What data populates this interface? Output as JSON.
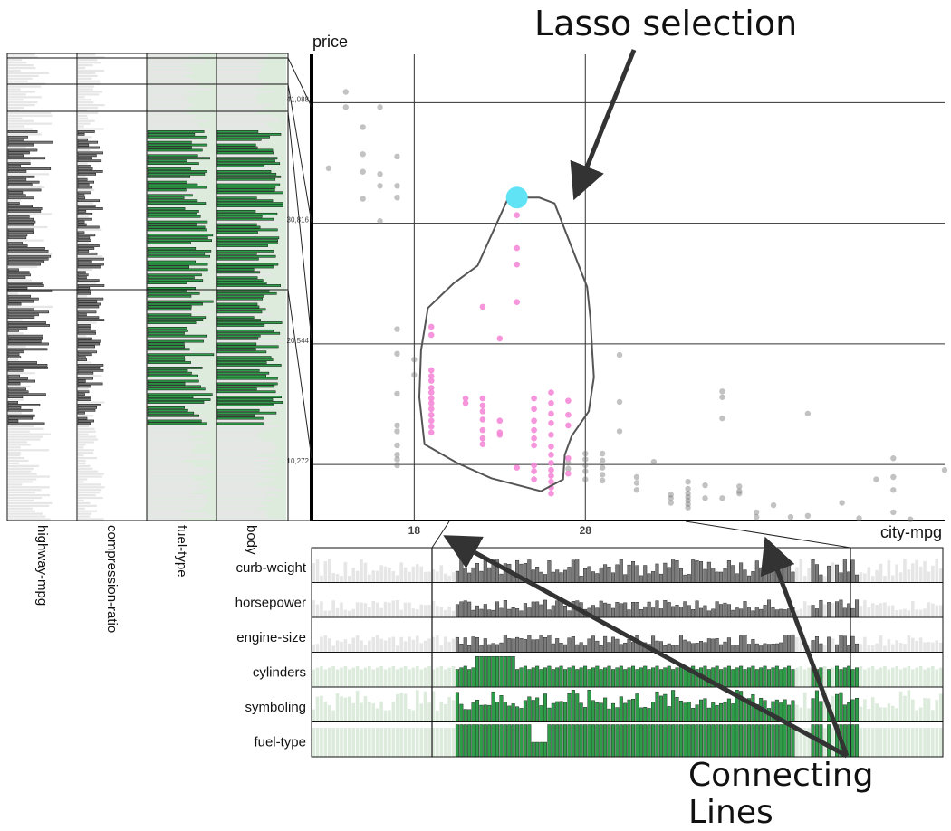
{
  "annotations": {
    "lasso_label": "Lasso selection",
    "connecting_label": "Connecting Lines"
  },
  "colors": {
    "selected_point": "#f58ad8",
    "unselected_point": "#777777",
    "lasso_anchor": "#5fe3f5",
    "categorical_bar": "#2e9c48",
    "numeric_bar": "#7a7a7a",
    "faded_bar": "#e6e6e6",
    "faded_green": "#dcebdc"
  },
  "chart_data": [
    {
      "type": "scatter",
      "x_label": "city-mpg",
      "y_label": "price",
      "x_ticks": [
        "18",
        "28"
      ],
      "y_ticks": [
        "10,272",
        "20,544",
        "30,816",
        "41,088"
      ],
      "x_range": [
        12,
        49
      ],
      "y_range": [
        5500,
        45200
      ],
      "lasso": [
        [
          24,
          33000
        ],
        [
          25.3,
          33000
        ],
        [
          26.2,
          32500
        ],
        [
          28.1,
          25400
        ],
        [
          28.3,
          22700
        ],
        [
          28.4,
          20000
        ],
        [
          28.5,
          17700
        ],
        [
          28.2,
          14800
        ],
        [
          27.2,
          12700
        ],
        [
          26.8,
          11100
        ],
        [
          26.7,
          9000
        ],
        [
          25.4,
          8000
        ],
        [
          22.5,
          9100
        ],
        [
          20.5,
          10400
        ],
        [
          18.6,
          12000
        ],
        [
          18.3,
          16000
        ],
        [
          18.4,
          20000
        ],
        [
          18.8,
          23600
        ],
        [
          20.3,
          25700
        ],
        [
          21.7,
          27200
        ],
        [
          23.5,
          33000
        ]
      ],
      "lasso_anchor": [
        24,
        33000
      ],
      "selected_points": [
        [
          24,
          31500
        ],
        [
          24,
          28700
        ],
        [
          24,
          27300
        ],
        [
          24,
          24100
        ],
        [
          22,
          23700
        ],
        [
          19,
          22000
        ],
        [
          19,
          21300
        ],
        [
          23,
          21000
        ],
        [
          19,
          18300
        ],
        [
          19,
          17800
        ],
        [
          19,
          17400
        ],
        [
          19,
          16800
        ],
        [
          19,
          16400
        ],
        [
          19,
          15900
        ],
        [
          19,
          15500
        ],
        [
          19,
          15000
        ],
        [
          19,
          14500
        ],
        [
          19,
          14000
        ],
        [
          19,
          13500
        ],
        [
          19,
          13000
        ],
        [
          21,
          15900
        ],
        [
          21,
          15500
        ],
        [
          22,
          15900
        ],
        [
          22,
          15300
        ],
        [
          22,
          14800
        ],
        [
          22,
          14100
        ],
        [
          22,
          13200
        ],
        [
          22,
          12500
        ],
        [
          22,
          12000
        ],
        [
          23,
          14000
        ],
        [
          23,
          13000
        ],
        [
          25,
          15900
        ],
        [
          25,
          15000
        ],
        [
          25,
          14000
        ],
        [
          25,
          13200
        ],
        [
          25,
          12500
        ],
        [
          25,
          11900
        ],
        [
          25,
          10200
        ],
        [
          25,
          9700
        ],
        [
          25,
          9000
        ],
        [
          26,
          16400
        ],
        [
          26,
          15500
        ],
        [
          26,
          14600
        ],
        [
          26,
          13800
        ],
        [
          26,
          12800
        ],
        [
          26,
          11800
        ],
        [
          26,
          11100
        ],
        [
          26,
          10400
        ],
        [
          26,
          9800
        ],
        [
          26,
          9300
        ],
        [
          26,
          8800
        ],
        [
          26,
          8300
        ],
        [
          26,
          7800
        ],
        [
          27,
          15700
        ],
        [
          27,
          14500
        ],
        [
          27,
          13600
        ],
        [
          27,
          10800
        ],
        [
          27,
          9500
        ],
        [
          24,
          10000
        ],
        [
          23,
          12800
        ]
      ],
      "unselected_points": [
        [
          13,
          35500
        ],
        [
          14,
          42000
        ],
        [
          14,
          40700
        ],
        [
          15,
          39000
        ],
        [
          15,
          36700
        ],
        [
          15,
          35200
        ],
        [
          15,
          32900
        ],
        [
          16,
          40700
        ],
        [
          16,
          35000
        ],
        [
          16,
          34000
        ],
        [
          16,
          31000
        ],
        [
          17,
          36500
        ],
        [
          17,
          34000
        ],
        [
          17,
          33000
        ],
        [
          17,
          21800
        ],
        [
          17,
          19700
        ],
        [
          17,
          16300
        ],
        [
          17,
          13600
        ],
        [
          17,
          13100
        ],
        [
          17,
          11900
        ],
        [
          17,
          11100
        ],
        [
          17,
          10700
        ],
        [
          17,
          10200
        ],
        [
          18,
          19200
        ],
        [
          18,
          17900
        ],
        [
          27,
          10400
        ],
        [
          27,
          9900
        ],
        [
          28,
          11200
        ],
        [
          28,
          10700
        ],
        [
          28,
          10200
        ],
        [
          28,
          9700
        ],
        [
          28,
          9000
        ],
        [
          29,
          11200
        ],
        [
          29,
          10600
        ],
        [
          29,
          10000
        ],
        [
          29,
          9400
        ],
        [
          29,
          8900
        ],
        [
          30,
          19600
        ],
        [
          30,
          15600
        ],
        [
          30,
          13100
        ],
        [
          31,
          9200
        ],
        [
          31,
          8700
        ],
        [
          31,
          8100
        ],
        [
          32,
          10500
        ],
        [
          33,
          7700
        ],
        [
          33,
          7400
        ],
        [
          33,
          7000
        ],
        [
          34,
          8800
        ],
        [
          34,
          8200
        ],
        [
          34,
          7800
        ],
        [
          34,
          7500
        ],
        [
          34,
          7200
        ],
        [
          34,
          6900
        ],
        [
          34,
          6600
        ],
        [
          35,
          8500
        ],
        [
          35,
          7400
        ],
        [
          36,
          16500
        ],
        [
          36,
          16000
        ],
        [
          36,
          14200
        ],
        [
          36,
          7400
        ],
        [
          37,
          8400
        ],
        [
          37,
          8000
        ],
        [
          37,
          7800
        ],
        [
          38,
          6200
        ],
        [
          38,
          5800
        ],
        [
          39,
          6800
        ],
        [
          40,
          5800
        ],
        [
          41,
          14600
        ],
        [
          41,
          5900
        ],
        [
          43,
          7000
        ],
        [
          44,
          5700
        ],
        [
          45,
          9000
        ],
        [
          46,
          10800
        ],
        [
          46,
          9200
        ],
        [
          46,
          8100
        ],
        [
          46,
          6200
        ],
        [
          47,
          5600
        ],
        [
          49,
          9800
        ]
      ]
    },
    {
      "type": "table",
      "orientation": "horizontal-bars",
      "columns": [
        {
          "label": "highway-mpg",
          "kind": "numeric"
        },
        {
          "label": "compression-ratio",
          "kind": "numeric"
        },
        {
          "label": "fuel-type",
          "kind": "categorical"
        },
        {
          "label": "body",
          "kind": "categorical"
        }
      ],
      "row_count": 176,
      "selected_range": [
        29,
        139
      ]
    },
    {
      "type": "table",
      "orientation": "vertical-bars",
      "rows": [
        {
          "label": "curb-weight",
          "kind": "numeric"
        },
        {
          "label": "horsepower",
          "kind": "numeric"
        },
        {
          "label": "engine-size",
          "kind": "numeric"
        },
        {
          "label": "cylinders",
          "kind": "categorical"
        },
        {
          "label": "symboling",
          "kind": "categorical"
        },
        {
          "label": "fuel-type",
          "kind": "categorical"
        }
      ],
      "column_count": 158,
      "selected_range": [
        36,
        136
      ]
    }
  ]
}
